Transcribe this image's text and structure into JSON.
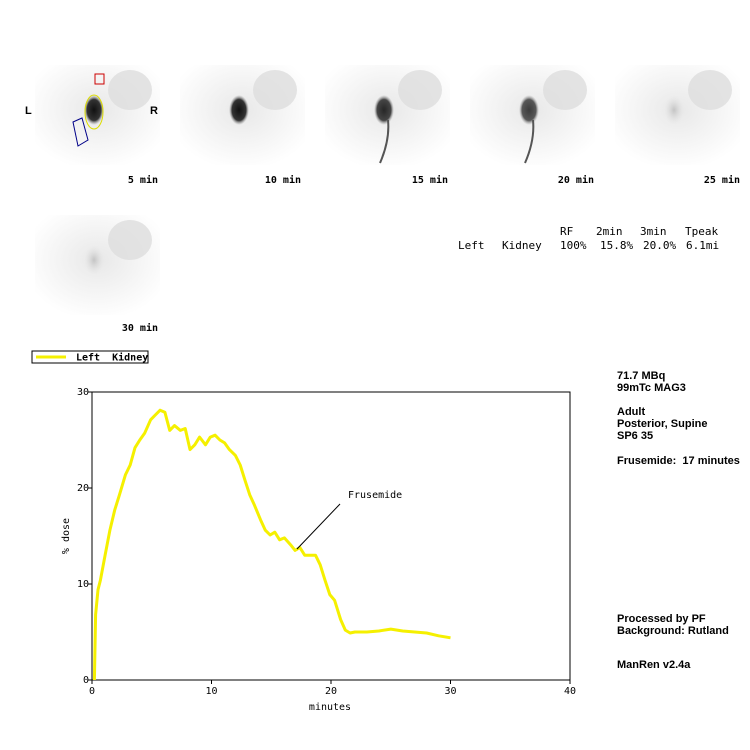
{
  "images": [
    {
      "label": "5 min"
    },
    {
      "label": "10 min"
    },
    {
      "label": "15 min"
    },
    {
      "label": "20 min"
    },
    {
      "label": "25 min"
    },
    {
      "label": "30 min"
    }
  ],
  "orientation": {
    "left": "L",
    "right": "R"
  },
  "table": {
    "header": [
      "RF",
      "2min",
      "3min",
      "Tpeak"
    ],
    "rows": [
      [
        "Left",
        "Kidney",
        "100%",
        "15.8%",
        "20.0%",
        "6.1mi"
      ]
    ]
  },
  "info": [
    "71.7 MBq",
    "99mTc MAG3",
    "Adult",
    "Posterior, Supine",
    "SP6 35",
    "Frusemide:  17 minutes",
    "Processed by PF",
    "Background: Rutland",
    "ManRen v2.4a"
  ],
  "chart_data": {
    "type": "line",
    "xlabel": "minutes",
    "ylabel": "% dose",
    "xlim": [
      0,
      40
    ],
    "ylim": [
      0,
      30
    ],
    "xticks": [
      0,
      10,
      20,
      30,
      40
    ],
    "yticks": [
      0,
      10,
      20,
      30
    ],
    "annotation": "Frusemide",
    "x": [
      0.2,
      0.3,
      0.5,
      0.7,
      1.1,
      1.5,
      1.9,
      2.3,
      2.8,
      3.2,
      3.6,
      4.0,
      4.4,
      4.9,
      5.3,
      5.7,
      6.1,
      6.5,
      6.9,
      7.4,
      7.8,
      8.2,
      8.6,
      9.0,
      9.5,
      9.9,
      10.3,
      10.7,
      11.1,
      11.5,
      12.0,
      12.4,
      12.8,
      13.2,
      13.6,
      14.1,
      14.5,
      14.9,
      15.3,
      15.7,
      16.1,
      16.6,
      17.0,
      17.4,
      17.8,
      18.2,
      18.7,
      19.1,
      19.5,
      19.9,
      20.3,
      20.8,
      21.2,
      21.6,
      22.0,
      23.0,
      24.0,
      25.0,
      26.0,
      27.0,
      28.0,
      29.0,
      30.0
    ],
    "series": [
      {
        "name": "Left  Kidney",
        "color": "#f5f000",
        "values": [
          0,
          6.8,
          9.4,
          10.4,
          13,
          15.6,
          17.7,
          19.3,
          21.4,
          22.4,
          24.2,
          25,
          25.7,
          27.1,
          27.6,
          28.1,
          27.9,
          26,
          26.5,
          26,
          26.2,
          24,
          24.5,
          25.3,
          24.5,
          25.3,
          25.5,
          25,
          24.7,
          24,
          23.4,
          22.4,
          20.8,
          19.3,
          18.2,
          16.7,
          15.6,
          15.1,
          15.4,
          14.6,
          14.8,
          14.1,
          13.5,
          13.8,
          13,
          13,
          13,
          12,
          10.4,
          8.9,
          8.3,
          6.3,
          5.2,
          4.9,
          5,
          5,
          5.1,
          5.3,
          5.1,
          5,
          4.9,
          4.6,
          4.4
        ]
      }
    ]
  }
}
